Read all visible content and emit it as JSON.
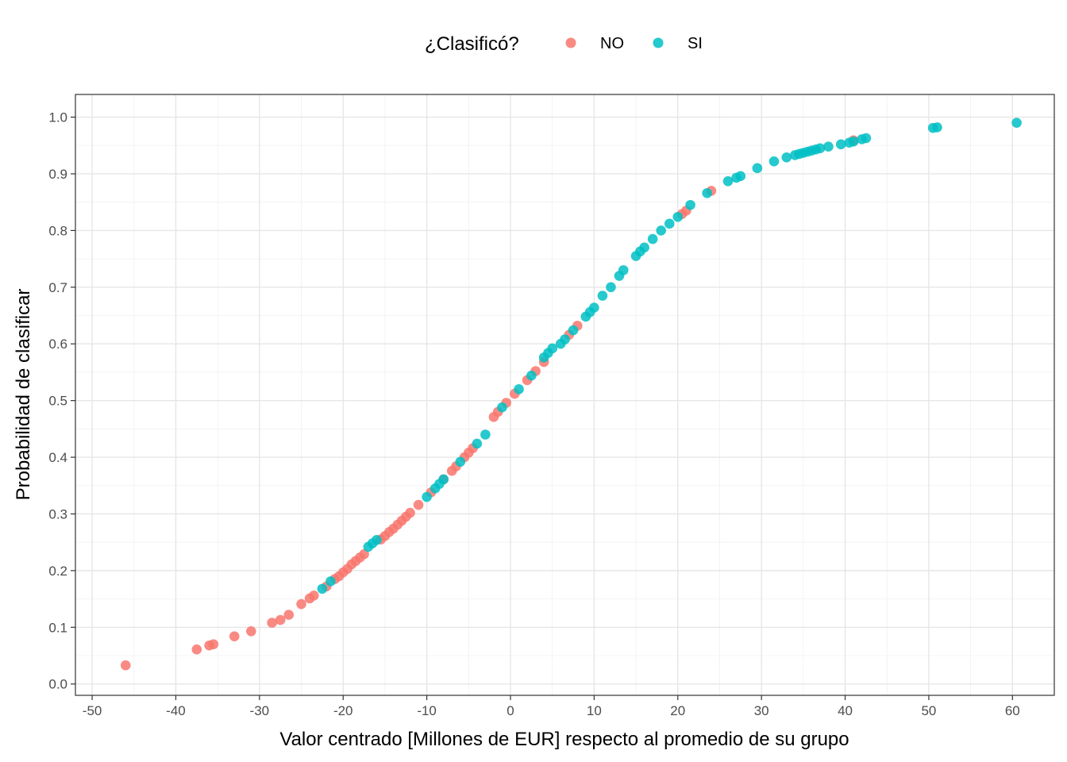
{
  "chart_data": {
    "type": "scatter",
    "title": "",
    "xlabel": "Valor centrado [Millones de EUR] respecto al promedio de su grupo",
    "ylabel": "Probabilidad de clasificar",
    "xlim": [
      -52,
      65
    ],
    "ylim": [
      -0.02,
      1.04
    ],
    "x_ticks": [
      -50,
      -40,
      -30,
      -20,
      -10,
      0,
      10,
      20,
      30,
      40,
      50,
      60
    ],
    "x_tick_labels": [
      "-50",
      "-40",
      "-30",
      "-20",
      "-10",
      "0",
      "10",
      "20",
      "30",
      "40",
      "50",
      "60"
    ],
    "y_ticks": [
      0.0,
      0.1,
      0.2,
      0.3,
      0.4,
      0.5,
      0.6,
      0.7,
      0.8,
      0.9,
      1.0
    ],
    "y_tick_labels": [
      "0.0",
      "0.1",
      "0.2",
      "0.3",
      "0.4",
      "0.5",
      "0.6",
      "0.7",
      "0.8",
      "0.9",
      "1.0"
    ],
    "grid": true,
    "legend": {
      "title": "¿Clasificó?",
      "position": "top",
      "entries": [
        {
          "label": "NO",
          "color": "#F8766D"
        },
        {
          "label": "SI",
          "color": "#00BFC4"
        }
      ]
    },
    "series": [
      {
        "name": "NO",
        "color": "#F8766D",
        "x": [
          -46,
          -37.5,
          -36,
          -35.5,
          -33,
          -31,
          -28.5,
          -27.5,
          -26.5,
          -25,
          -24,
          -23.5,
          -22,
          -21,
          -20.5,
          -20,
          -19.5,
          -19,
          -18.5,
          -18,
          -17.5,
          -15.5,
          -15,
          -14.5,
          -14,
          -13.5,
          -13,
          -12.5,
          -12,
          -11,
          -9.5,
          -8,
          -7,
          -6.5,
          -5,
          -4.5,
          -5.5,
          -2,
          -1.5,
          -0.5,
          0.5,
          2,
          3,
          4,
          7,
          8,
          20.5,
          21,
          24,
          41
        ],
        "y": [
          0.033,
          0.061,
          0.068,
          0.07,
          0.084,
          0.093,
          0.108,
          0.113,
          0.122,
          0.141,
          0.151,
          0.156,
          0.172,
          0.185,
          0.19,
          0.197,
          0.203,
          0.211,
          0.217,
          0.223,
          0.229,
          0.255,
          0.261,
          0.268,
          0.274,
          0.281,
          0.288,
          0.295,
          0.302,
          0.316,
          0.338,
          0.361,
          0.376,
          0.384,
          0.408,
          0.416,
          0.4,
          0.471,
          0.48,
          0.496,
          0.512,
          0.536,
          0.552,
          0.568,
          0.616,
          0.632,
          0.829,
          0.835,
          0.87,
          0.959
        ]
      },
      {
        "name": "SI",
        "color": "#00BFC4",
        "x": [
          -22.5,
          -21.5,
          -17,
          -16.5,
          -16,
          -10,
          -9,
          -8.5,
          -8,
          -6,
          -4,
          -3,
          -1,
          1,
          2.5,
          4,
          4.5,
          5,
          6,
          6.5,
          7.5,
          9,
          9.5,
          10,
          11,
          12,
          13,
          13.5,
          15,
          15.5,
          16,
          17,
          18,
          19,
          20,
          21.5,
          23.5,
          26,
          27,
          27.5,
          29.5,
          31.5,
          33,
          34,
          34.5,
          35,
          35.5,
          36,
          36.5,
          37,
          38,
          39.5,
          40.5,
          41,
          42,
          42.5,
          50.5,
          51,
          60.5
        ],
        "y": [
          0.168,
          0.181,
          0.242,
          0.248,
          0.254,
          0.33,
          0.345,
          0.353,
          0.361,
          0.392,
          0.424,
          0.44,
          0.488,
          0.52,
          0.544,
          0.576,
          0.584,
          0.592,
          0.6,
          0.608,
          0.624,
          0.648,
          0.656,
          0.664,
          0.685,
          0.7,
          0.72,
          0.73,
          0.755,
          0.763,
          0.77,
          0.785,
          0.8,
          0.812,
          0.824,
          0.845,
          0.866,
          0.887,
          0.893,
          0.896,
          0.91,
          0.922,
          0.929,
          0.933,
          0.935,
          0.937,
          0.939,
          0.941,
          0.943,
          0.945,
          0.948,
          0.952,
          0.955,
          0.957,
          0.961,
          0.963,
          0.981,
          0.982,
          0.99
        ]
      }
    ]
  }
}
